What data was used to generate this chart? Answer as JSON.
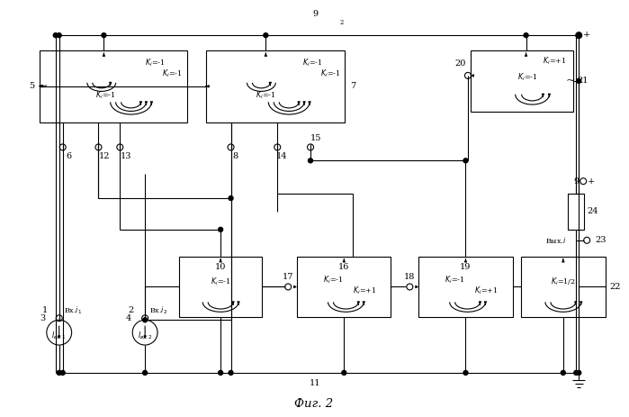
{
  "title": "Фиг. 2",
  "bg_color": "#ffffff",
  "fig_width": 6.99,
  "fig_height": 4.63,
  "dpi": 100,
  "lw": 0.8,
  "fs": 7.0,
  "fs_small": 5.8
}
